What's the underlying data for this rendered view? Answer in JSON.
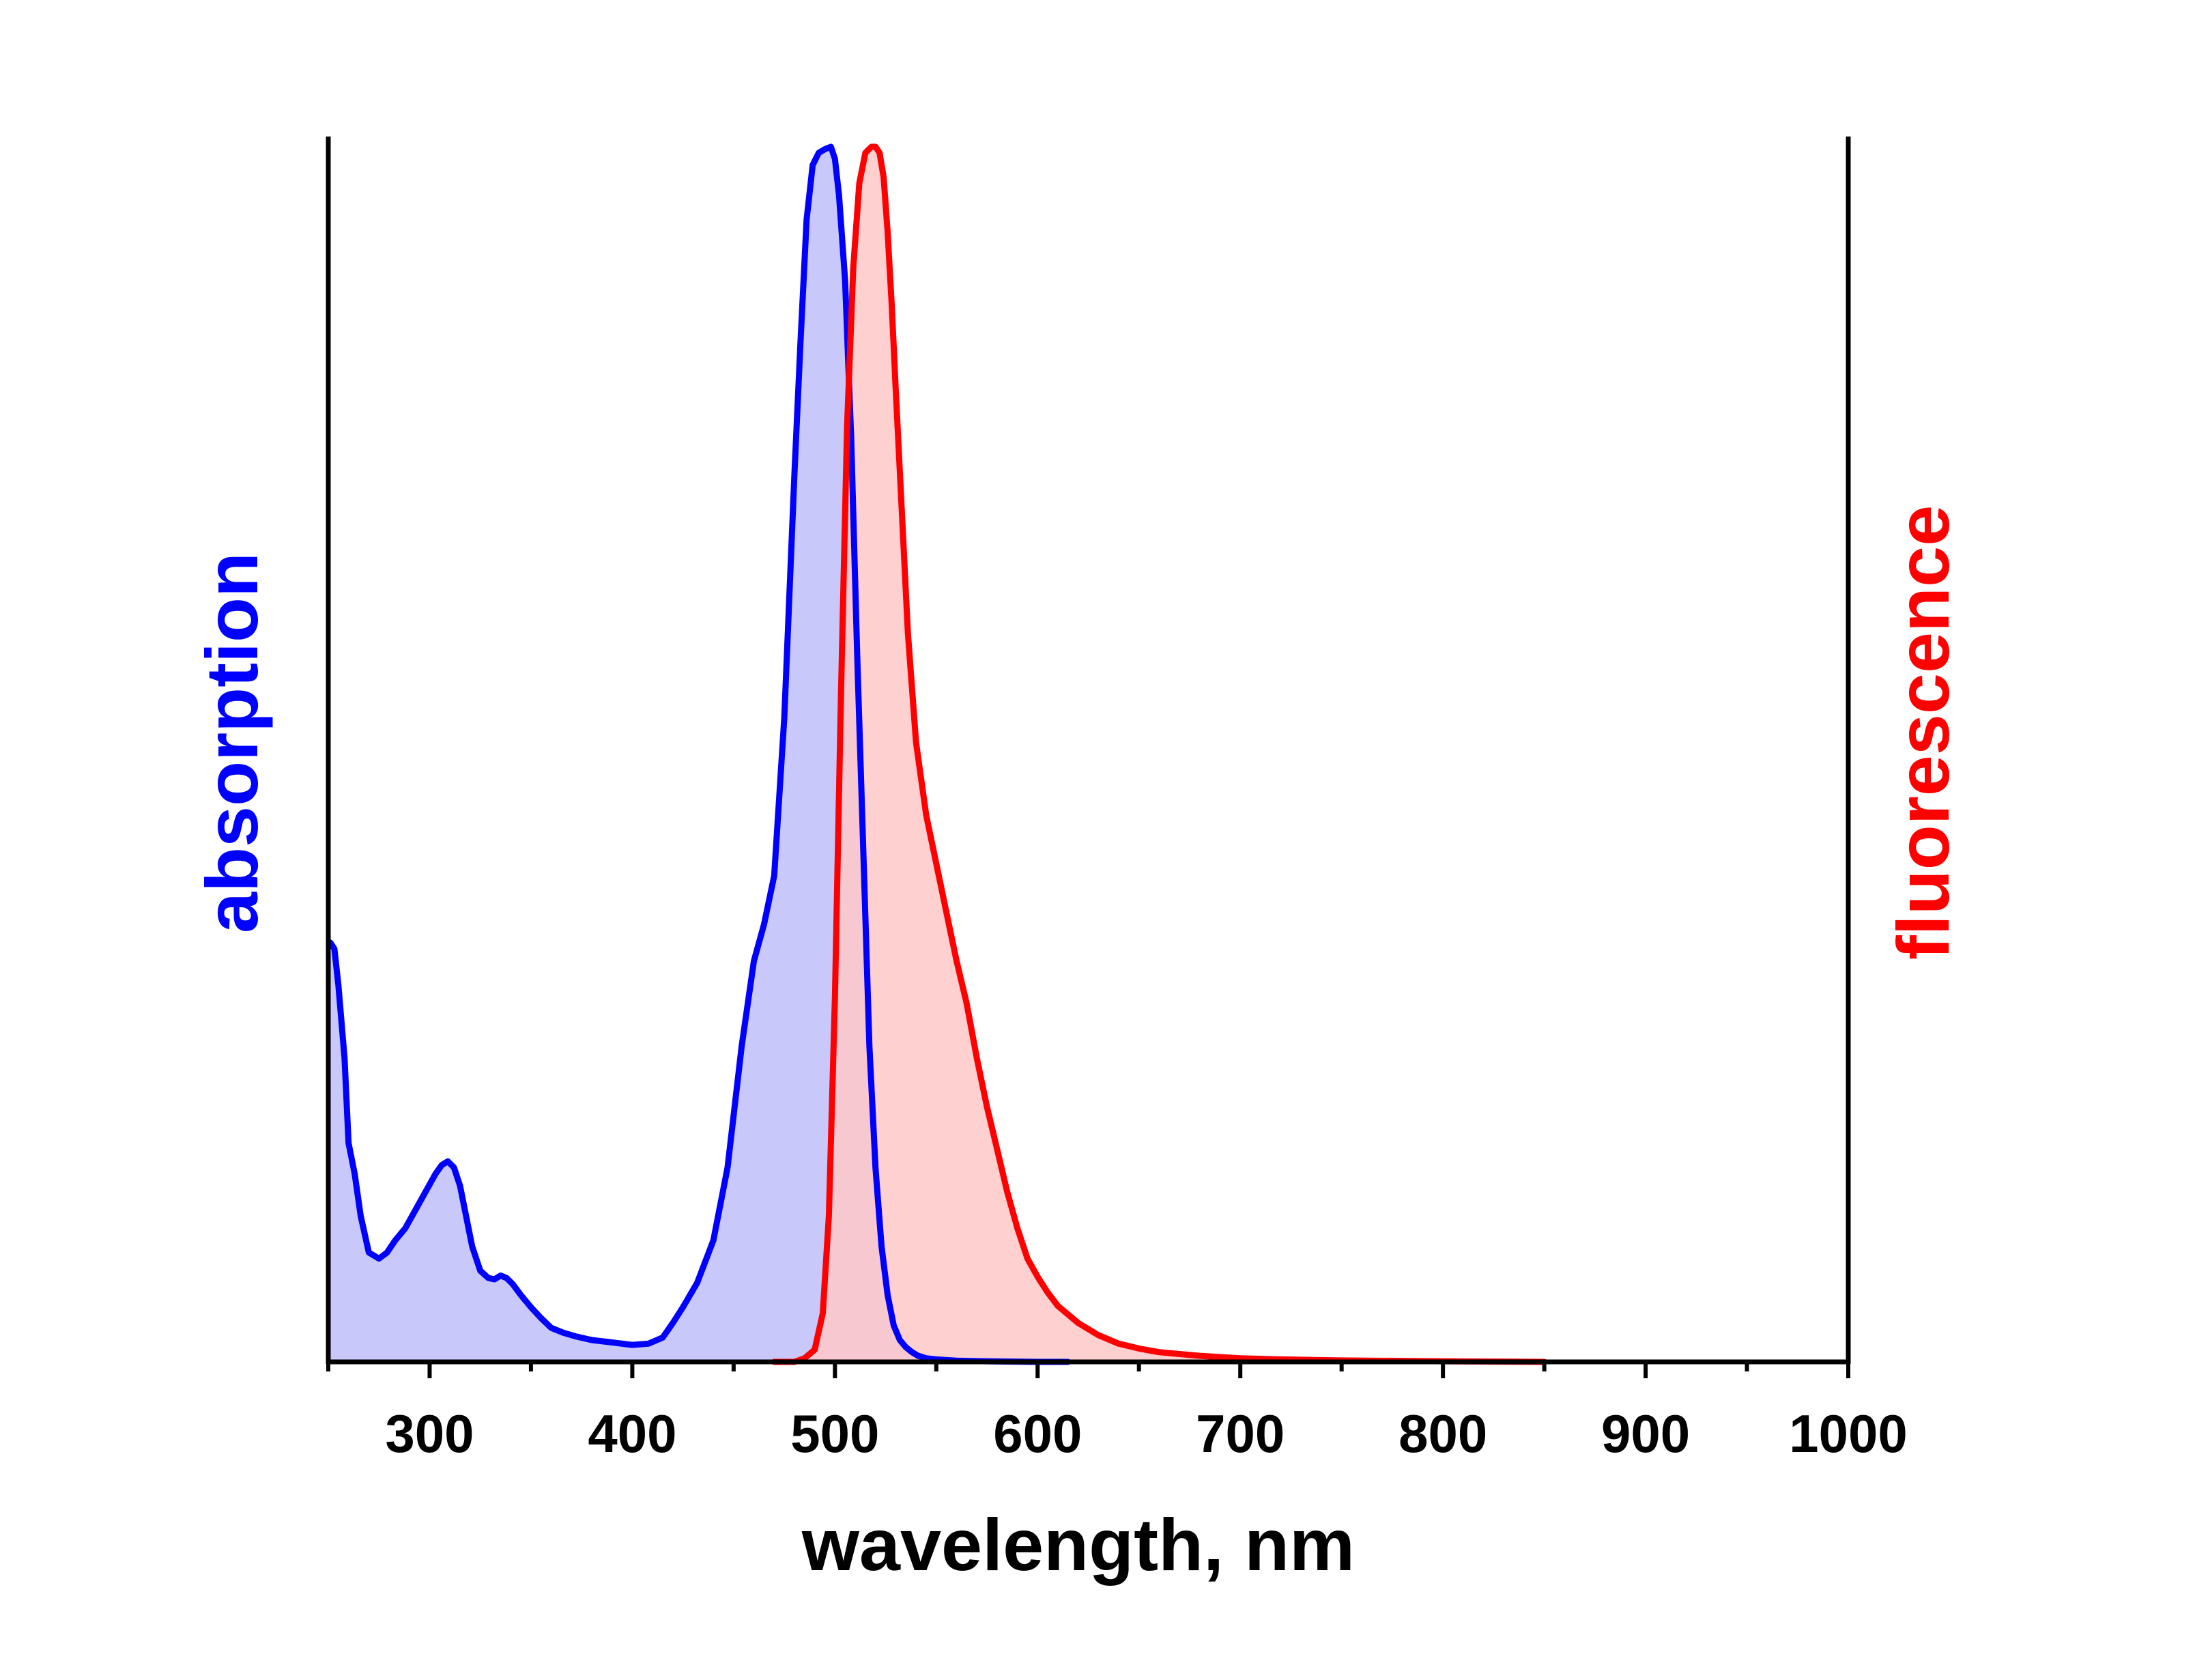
{
  "chart_data": {
    "type": "area",
    "xlabel": "wavelength, nm",
    "ylabel_left": "absorption",
    "ylabel_right": "fluorescence",
    "xlim": [
      250,
      1000
    ],
    "ylim": [
      0,
      1
    ],
    "x_ticks": [
      300,
      400,
      500,
      600,
      700,
      800,
      900,
      1000
    ],
    "x_tick_labels": [
      "300",
      "400",
      "500",
      "600",
      "700",
      "800",
      "900",
      "1000"
    ],
    "x_minor_ticks": [
      250,
      350,
      450,
      550,
      650,
      750,
      850,
      950
    ],
    "grid": false,
    "legend": "none",
    "colors": {
      "absorption": "#0000ff",
      "absorption_fill": "#c8c8fa",
      "fluorescence": "#ff0000",
      "fluorescence_fill": "#ffc8c8",
      "axis": "#000000"
    },
    "series": [
      {
        "key": "absorption",
        "axis": "left",
        "x": [
          251,
          253,
          255,
          258,
          260,
          263,
          266,
          270,
          275,
          279,
          283,
          288,
          293,
          298,
          303,
          306,
          309,
          312,
          315,
          318,
          321,
          325,
          329,
          332,
          335,
          338,
          341,
          345,
          350,
          355,
          360,
          366,
          372,
          380,
          390,
          400,
          408,
          415,
          420,
          425,
          432,
          440,
          447,
          454,
          460,
          465,
          470,
          475,
          480,
          483,
          486,
          489,
          492,
          495,
          498,
          500,
          502,
          505,
          508,
          511,
          514,
          517,
          520,
          523,
          526,
          529,
          532,
          535,
          538,
          541,
          545,
          550,
          560,
          575,
          600,
          615
        ],
        "y": [
          0.345,
          0.34,
          0.31,
          0.25,
          0.18,
          0.155,
          0.12,
          0.09,
          0.085,
          0.09,
          0.1,
          0.11,
          0.125,
          0.14,
          0.155,
          0.162,
          0.165,
          0.16,
          0.145,
          0.12,
          0.095,
          0.075,
          0.069,
          0.068,
          0.071,
          0.069,
          0.064,
          0.055,
          0.045,
          0.036,
          0.028,
          0.024,
          0.021,
          0.018,
          0.016,
          0.014,
          0.015,
          0.02,
          0.032,
          0.045,
          0.065,
          0.1,
          0.16,
          0.26,
          0.33,
          0.36,
          0.4,
          0.53,
          0.73,
          0.84,
          0.94,
          0.985,
          0.995,
          0.998,
          1.0,
          0.99,
          0.96,
          0.89,
          0.76,
          0.58,
          0.42,
          0.26,
          0.16,
          0.095,
          0.055,
          0.03,
          0.018,
          0.012,
          0.008,
          0.005,
          0.003,
          0.002,
          0.001,
          0.0005,
          0.0,
          0.0
        ]
      },
      {
        "key": "fluorescence",
        "axis": "right",
        "x": [
          470,
          480,
          485,
          490,
          494,
          497,
          500,
          503,
          506,
          509,
          512,
          515,
          518,
          520,
          522,
          524,
          526,
          528,
          530,
          533,
          536,
          540,
          545,
          550,
          555,
          560,
          565,
          570,
          575,
          580,
          585,
          590,
          595,
          600,
          605,
          610,
          620,
          630,
          640,
          650,
          660,
          680,
          700,
          720,
          750,
          800,
          850
        ],
        "y": [
          0.0,
          0.0,
          0.003,
          0.01,
          0.04,
          0.12,
          0.3,
          0.55,
          0.77,
          0.9,
          0.97,
          0.995,
          1.0,
          1.0,
          0.995,
          0.975,
          0.93,
          0.87,
          0.8,
          0.7,
          0.6,
          0.51,
          0.45,
          0.41,
          0.37,
          0.33,
          0.295,
          0.25,
          0.21,
          0.175,
          0.14,
          0.11,
          0.085,
          0.07,
          0.057,
          0.046,
          0.032,
          0.022,
          0.015,
          0.011,
          0.008,
          0.005,
          0.003,
          0.002,
          0.0012,
          0.0005,
          0.0
        ]
      }
    ]
  }
}
